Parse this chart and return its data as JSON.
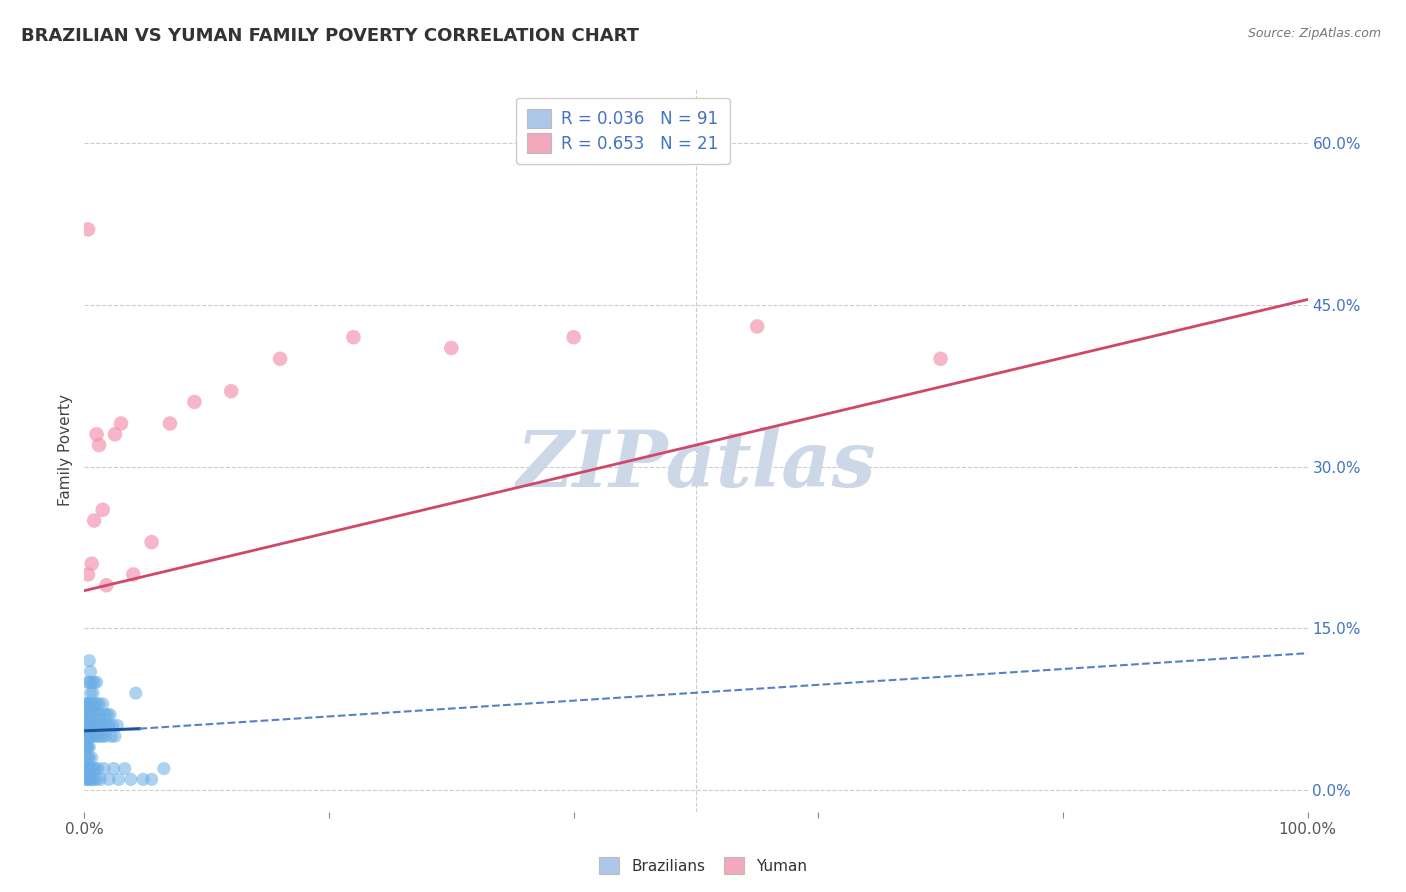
{
  "title": "BRAZILIAN VS YUMAN FAMILY POVERTY CORRELATION CHART",
  "source": "Source: ZipAtlas.com",
  "ylabel": "Family Poverty",
  "xlabel": "",
  "xlim": [
    0,
    1.0
  ],
  "ylim": [
    -0.02,
    0.65
  ],
  "yticks": [
    0.0,
    0.15,
    0.3,
    0.45,
    0.6
  ],
  "title_color": "#333333",
  "title_fontsize": 13,
  "source_color": "#777777",
  "axis_label_color": "#444444",
  "tick_color_right": "#4472c4",
  "background_color": "#ffffff",
  "grid_color": "#cccccc",
  "legend_R1": "R = 0.036",
  "legend_N1": "N = 91",
  "legend_R2": "R = 0.653",
  "legend_N2": "N = 21",
  "legend_color1": "#aec6e8",
  "legend_color2": "#f4a8bb",
  "watermark": "ZIPatlas",
  "watermark_color": "#ccd8e8",
  "brazilians_color": "#6aade4",
  "yuman_color": "#f28fab",
  "trend_blue_solid_color": "#2050a0",
  "trend_blue_dash_color": "#5580c8",
  "trend_pink_color": "#d04868",
  "blue_trend_x0": 0.0,
  "blue_trend_x_solid_end": 0.045,
  "blue_trend_x1": 1.0,
  "blue_trend_y0": 0.055,
  "blue_trend_y_solid_end": 0.057,
  "blue_trend_y1": 0.127,
  "pink_trend_x0": 0.0,
  "pink_trend_x1": 1.0,
  "pink_trend_y0": 0.185,
  "pink_trend_y1": 0.455,
  "brazilians_x": [
    0.0005,
    0.001,
    0.001,
    0.001,
    0.001,
    0.0015,
    0.0015,
    0.002,
    0.002,
    0.002,
    0.0025,
    0.0025,
    0.003,
    0.003,
    0.003,
    0.003,
    0.0035,
    0.004,
    0.004,
    0.004,
    0.004,
    0.004,
    0.005,
    0.005,
    0.005,
    0.005,
    0.006,
    0.006,
    0.006,
    0.007,
    0.007,
    0.007,
    0.008,
    0.008,
    0.008,
    0.009,
    0.009,
    0.01,
    0.01,
    0.01,
    0.011,
    0.011,
    0.012,
    0.012,
    0.013,
    0.013,
    0.014,
    0.015,
    0.015,
    0.016,
    0.017,
    0.017,
    0.018,
    0.019,
    0.02,
    0.021,
    0.022,
    0.023,
    0.025,
    0.027,
    0.001,
    0.001,
    0.001,
    0.002,
    0.002,
    0.002,
    0.003,
    0.003,
    0.003,
    0.004,
    0.004,
    0.005,
    0.005,
    0.006,
    0.006,
    0.007,
    0.008,
    0.009,
    0.01,
    0.011,
    0.013,
    0.016,
    0.02,
    0.024,
    0.028,
    0.033,
    0.038,
    0.042,
    0.048,
    0.055,
    0.065
  ],
  "brazilians_y": [
    0.05,
    0.06,
    0.07,
    0.04,
    0.08,
    0.05,
    0.07,
    0.04,
    0.06,
    0.08,
    0.05,
    0.07,
    0.04,
    0.06,
    0.08,
    0.1,
    0.05,
    0.04,
    0.06,
    0.08,
    0.1,
    0.12,
    0.05,
    0.07,
    0.09,
    0.11,
    0.06,
    0.08,
    0.1,
    0.05,
    0.07,
    0.09,
    0.06,
    0.08,
    0.1,
    0.05,
    0.07,
    0.06,
    0.08,
    0.1,
    0.05,
    0.07,
    0.06,
    0.08,
    0.05,
    0.07,
    0.06,
    0.05,
    0.08,
    0.06,
    0.07,
    0.05,
    0.06,
    0.07,
    0.06,
    0.07,
    0.05,
    0.06,
    0.05,
    0.06,
    0.02,
    0.03,
    0.01,
    0.02,
    0.04,
    0.01,
    0.02,
    0.03,
    0.01,
    0.02,
    0.03,
    0.01,
    0.02,
    0.01,
    0.03,
    0.02,
    0.01,
    0.02,
    0.01,
    0.02,
    0.01,
    0.02,
    0.01,
    0.02,
    0.01,
    0.02,
    0.01,
    0.09,
    0.01,
    0.01,
    0.02
  ],
  "yuman_x": [
    0.003,
    0.006,
    0.008,
    0.01,
    0.012,
    0.015,
    0.018,
    0.025,
    0.03,
    0.04,
    0.055,
    0.07,
    0.09,
    0.12,
    0.16,
    0.22,
    0.3,
    0.4,
    0.55,
    0.7,
    0.003
  ],
  "yuman_y": [
    0.52,
    0.21,
    0.25,
    0.33,
    0.32,
    0.26,
    0.19,
    0.33,
    0.34,
    0.2,
    0.23,
    0.34,
    0.36,
    0.37,
    0.4,
    0.42,
    0.41,
    0.42,
    0.43,
    0.4,
    0.2
  ]
}
